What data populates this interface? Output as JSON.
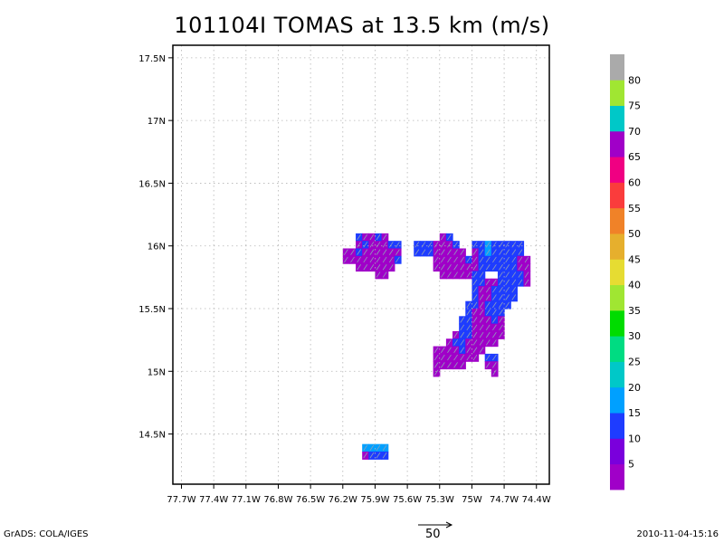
{
  "title": "101104I TOMAS at 13.5 km (m/s)",
  "footer": {
    "credit": "GrADS: COLA/IGES",
    "timestamp": "2010-11-04-15:16",
    "reference_vector_label": "50"
  },
  "chart_data": {
    "type": "heatmap",
    "title": "101104I TOMAS at 13.5 km (m/s)",
    "xlabel": "",
    "ylabel": "",
    "x_ticks": [
      -77.7,
      -77.4,
      -77.1,
      -76.8,
      -76.5,
      -76.2,
      -75.9,
      -75.6,
      -75.3,
      -75.0,
      -74.7,
      -74.4
    ],
    "x_tick_labels": [
      "77.7W",
      "77.4W",
      "77.1W",
      "76.8W",
      "76.5W",
      "76.2W",
      "75.9W",
      "75.6W",
      "75.3W",
      "75W",
      "74.7W",
      "74.4W"
    ],
    "y_ticks": [
      14.5,
      15.0,
      15.5,
      16.0,
      16.5,
      17.0,
      17.5
    ],
    "y_tick_labels": [
      "14.5N",
      "15N",
      "15.5N",
      "16N",
      "16.5N",
      "17N",
      "17.5N"
    ],
    "xlim": [
      -77.78,
      -74.28
    ],
    "ylim": [
      14.1,
      17.6
    ],
    "grid": true,
    "colorbar": {
      "labels": [
        "5",
        "10",
        "15",
        "20",
        "25",
        "30",
        "35",
        "40",
        "45",
        "50",
        "55",
        "60",
        "65",
        "70",
        "75",
        "80"
      ],
      "colors": [
        "#a000c8",
        "#7a00dc",
        "#1e3cff",
        "#00a0ff",
        "#00c8c8",
        "#00dc82",
        "#00dc00",
        "#a0e632",
        "#e6dc32",
        "#e6af2d",
        "#f08228",
        "#fa3c3c",
        "#f00082",
        "#a000c8",
        "#00c8c8",
        "#a0e632",
        "#aaaaaa"
      ]
    },
    "cells": [
      {
        "lon": -76.05,
        "lat": 16.07,
        "v": 12
      },
      {
        "lon": -75.99,
        "lat": 16.07,
        "v": 8
      },
      {
        "lon": -75.93,
        "lat": 16.07,
        "v": 8
      },
      {
        "lon": -75.87,
        "lat": 16.07,
        "v": 12
      },
      {
        "lon": -75.81,
        "lat": 16.07,
        "v": 8
      },
      {
        "lon": -76.05,
        "lat": 16.01,
        "v": 8
      },
      {
        "lon": -75.99,
        "lat": 16.01,
        "v": 12
      },
      {
        "lon": -75.93,
        "lat": 16.01,
        "v": 8
      },
      {
        "lon": -75.87,
        "lat": 16.01,
        "v": 8
      },
      {
        "lon": -75.81,
        "lat": 16.01,
        "v": 8
      },
      {
        "lon": -75.75,
        "lat": 16.01,
        "v": 12
      },
      {
        "lon": -75.69,
        "lat": 16.01,
        "v": 12
      },
      {
        "lon": -76.17,
        "lat": 15.95,
        "v": 8
      },
      {
        "lon": -76.11,
        "lat": 15.95,
        "v": 8
      },
      {
        "lon": -76.05,
        "lat": 15.95,
        "v": 12
      },
      {
        "lon": -75.99,
        "lat": 15.95,
        "v": 8
      },
      {
        "lon": -75.93,
        "lat": 15.95,
        "v": 8
      },
      {
        "lon": -75.87,
        "lat": 15.95,
        "v": 8
      },
      {
        "lon": -75.81,
        "lat": 15.95,
        "v": 8
      },
      {
        "lon": -75.75,
        "lat": 15.95,
        "v": 8
      },
      {
        "lon": -75.69,
        "lat": 15.95,
        "v": 8
      },
      {
        "lon": -76.17,
        "lat": 15.89,
        "v": 8
      },
      {
        "lon": -76.11,
        "lat": 15.89,
        "v": 8
      },
      {
        "lon": -76.05,
        "lat": 15.89,
        "v": 8
      },
      {
        "lon": -75.99,
        "lat": 15.89,
        "v": 8
      },
      {
        "lon": -75.93,
        "lat": 15.89,
        "v": 8
      },
      {
        "lon": -75.87,
        "lat": 15.89,
        "v": 8
      },
      {
        "lon": -75.81,
        "lat": 15.89,
        "v": 8
      },
      {
        "lon": -75.75,
        "lat": 15.89,
        "v": 8
      },
      {
        "lon": -75.69,
        "lat": 15.89,
        "v": 12
      },
      {
        "lon": -76.05,
        "lat": 15.83,
        "v": 8
      },
      {
        "lon": -75.99,
        "lat": 15.83,
        "v": 8
      },
      {
        "lon": -75.93,
        "lat": 15.83,
        "v": 8
      },
      {
        "lon": -75.87,
        "lat": 15.83,
        "v": 8
      },
      {
        "lon": -75.81,
        "lat": 15.83,
        "v": 8
      },
      {
        "lon": -75.75,
        "lat": 15.83,
        "v": 8
      },
      {
        "lon": -75.87,
        "lat": 15.77,
        "v": 8
      },
      {
        "lon": -75.81,
        "lat": 15.77,
        "v": 8
      },
      {
        "lon": -75.27,
        "lat": 16.07,
        "v": 8
      },
      {
        "lon": -75.21,
        "lat": 16.07,
        "v": 12
      },
      {
        "lon": -75.51,
        "lat": 16.01,
        "v": 12
      },
      {
        "lon": -75.45,
        "lat": 16.01,
        "v": 12
      },
      {
        "lon": -75.39,
        "lat": 16.01,
        "v": 12
      },
      {
        "lon": -75.33,
        "lat": 16.01,
        "v": 8
      },
      {
        "lon": -75.27,
        "lat": 16.01,
        "v": 8
      },
      {
        "lon": -75.21,
        "lat": 16.01,
        "v": 8
      },
      {
        "lon": -75.15,
        "lat": 16.01,
        "v": 12
      },
      {
        "lon": -74.97,
        "lat": 16.01,
        "v": 12
      },
      {
        "lon": -74.91,
        "lat": 16.01,
        "v": 12
      },
      {
        "lon": -74.85,
        "lat": 16.01,
        "v": 18
      },
      {
        "lon": -74.79,
        "lat": 16.01,
        "v": 12
      },
      {
        "lon": -74.73,
        "lat": 16.01,
        "v": 12
      },
      {
        "lon": -74.67,
        "lat": 16.01,
        "v": 12
      },
      {
        "lon": -74.61,
        "lat": 16.01,
        "v": 12
      },
      {
        "lon": -74.55,
        "lat": 16.01,
        "v": 12
      },
      {
        "lon": -75.51,
        "lat": 15.95,
        "v": 12
      },
      {
        "lon": -75.45,
        "lat": 15.95,
        "v": 12
      },
      {
        "lon": -75.39,
        "lat": 15.95,
        "v": 12
      },
      {
        "lon": -75.33,
        "lat": 15.95,
        "v": 8
      },
      {
        "lon": -75.27,
        "lat": 15.95,
        "v": 8
      },
      {
        "lon": -75.21,
        "lat": 15.95,
        "v": 8
      },
      {
        "lon": -75.15,
        "lat": 15.95,
        "v": 8
      },
      {
        "lon": -75.09,
        "lat": 15.95,
        "v": 8
      },
      {
        "lon": -74.97,
        "lat": 15.95,
        "v": 8
      },
      {
        "lon": -74.91,
        "lat": 15.95,
        "v": 12
      },
      {
        "lon": -74.85,
        "lat": 15.95,
        "v": 18
      },
      {
        "lon": -74.79,
        "lat": 15.95,
        "v": 12
      },
      {
        "lon": -74.73,
        "lat": 15.95,
        "v": 12
      },
      {
        "lon": -74.67,
        "lat": 15.95,
        "v": 12
      },
      {
        "lon": -74.61,
        "lat": 15.95,
        "v": 12
      },
      {
        "lon": -74.55,
        "lat": 15.95,
        "v": 12
      },
      {
        "lon": -75.33,
        "lat": 15.89,
        "v": 8
      },
      {
        "lon": -75.27,
        "lat": 15.89,
        "v": 8
      },
      {
        "lon": -75.21,
        "lat": 15.89,
        "v": 8
      },
      {
        "lon": -75.15,
        "lat": 15.89,
        "v": 8
      },
      {
        "lon": -75.09,
        "lat": 15.89,
        "v": 8
      },
      {
        "lon": -75.03,
        "lat": 15.89,
        "v": 12
      },
      {
        "lon": -74.97,
        "lat": 15.89,
        "v": 8
      },
      {
        "lon": -74.91,
        "lat": 15.89,
        "v": 12
      },
      {
        "lon": -74.85,
        "lat": 15.89,
        "v": 12
      },
      {
        "lon": -74.79,
        "lat": 15.89,
        "v": 12
      },
      {
        "lon": -74.73,
        "lat": 15.89,
        "v": 12
      },
      {
        "lon": -74.67,
        "lat": 15.89,
        "v": 12
      },
      {
        "lon": -74.61,
        "lat": 15.89,
        "v": 12
      },
      {
        "lon": -74.55,
        "lat": 15.89,
        "v": 8
      },
      {
        "lon": -74.49,
        "lat": 15.89,
        "v": 8
      },
      {
        "lon": -75.33,
        "lat": 15.83,
        "v": 8
      },
      {
        "lon": -75.27,
        "lat": 15.83,
        "v": 8
      },
      {
        "lon": -75.21,
        "lat": 15.83,
        "v": 8
      },
      {
        "lon": -75.15,
        "lat": 15.83,
        "v": 8
      },
      {
        "lon": -75.09,
        "lat": 15.83,
        "v": 8
      },
      {
        "lon": -75.03,
        "lat": 15.83,
        "v": 8
      },
      {
        "lon": -74.97,
        "lat": 15.83,
        "v": 8
      },
      {
        "lon": -74.91,
        "lat": 15.83,
        "v": 12
      },
      {
        "lon": -74.85,
        "lat": 15.83,
        "v": 12
      },
      {
        "lon": -74.79,
        "lat": 15.83,
        "v": 12
      },
      {
        "lon": -74.73,
        "lat": 15.83,
        "v": 12
      },
      {
        "lon": -74.67,
        "lat": 15.83,
        "v": 12
      },
      {
        "lon": -74.61,
        "lat": 15.83,
        "v": 12
      },
      {
        "lon": -74.55,
        "lat": 15.83,
        "v": 8
      },
      {
        "lon": -74.49,
        "lat": 15.83,
        "v": 8
      },
      {
        "lon": -75.27,
        "lat": 15.77,
        "v": 8
      },
      {
        "lon": -75.21,
        "lat": 15.77,
        "v": 8
      },
      {
        "lon": -75.15,
        "lat": 15.77,
        "v": 8
      },
      {
        "lon": -75.09,
        "lat": 15.77,
        "v": 8
      },
      {
        "lon": -75.03,
        "lat": 15.77,
        "v": 8
      },
      {
        "lon": -74.97,
        "lat": 15.77,
        "v": 12
      },
      {
        "lon": -74.91,
        "lat": 15.77,
        "v": 12
      },
      {
        "lon": -74.73,
        "lat": 15.77,
        "v": 12
      },
      {
        "lon": -74.67,
        "lat": 15.77,
        "v": 12
      },
      {
        "lon": -74.61,
        "lat": 15.77,
        "v": 12
      },
      {
        "lon": -74.55,
        "lat": 15.77,
        "v": 12
      },
      {
        "lon": -74.49,
        "lat": 15.77,
        "v": 8
      },
      {
        "lon": -74.97,
        "lat": 15.71,
        "v": 12
      },
      {
        "lon": -74.91,
        "lat": 15.71,
        "v": 12
      },
      {
        "lon": -74.85,
        "lat": 15.71,
        "v": 8
      },
      {
        "lon": -74.79,
        "lat": 15.71,
        "v": 8
      },
      {
        "lon": -74.73,
        "lat": 15.71,
        "v": 12
      },
      {
        "lon": -74.67,
        "lat": 15.71,
        "v": 12
      },
      {
        "lon": -74.61,
        "lat": 15.71,
        "v": 12
      },
      {
        "lon": -74.55,
        "lat": 15.71,
        "v": 12
      },
      {
        "lon": -74.49,
        "lat": 15.71,
        "v": 8
      },
      {
        "lon": -74.97,
        "lat": 15.65,
        "v": 12
      },
      {
        "lon": -74.91,
        "lat": 15.65,
        "v": 8
      },
      {
        "lon": -74.85,
        "lat": 15.65,
        "v": 8
      },
      {
        "lon": -74.79,
        "lat": 15.65,
        "v": 12
      },
      {
        "lon": -74.73,
        "lat": 15.65,
        "v": 12
      },
      {
        "lon": -74.67,
        "lat": 15.65,
        "v": 12
      },
      {
        "lon": -74.61,
        "lat": 15.65,
        "v": 12
      },
      {
        "lon": -74.97,
        "lat": 15.59,
        "v": 12
      },
      {
        "lon": -74.91,
        "lat": 15.59,
        "v": 8
      },
      {
        "lon": -74.85,
        "lat": 15.59,
        "v": 8
      },
      {
        "lon": -74.79,
        "lat": 15.59,
        "v": 12
      },
      {
        "lon": -74.73,
        "lat": 15.59,
        "v": 12
      },
      {
        "lon": -74.67,
        "lat": 15.59,
        "v": 12
      },
      {
        "lon": -74.61,
        "lat": 15.59,
        "v": 12
      },
      {
        "lon": -75.03,
        "lat": 15.53,
        "v": 12
      },
      {
        "lon": -74.97,
        "lat": 15.53,
        "v": 12
      },
      {
        "lon": -74.91,
        "lat": 15.53,
        "v": 8
      },
      {
        "lon": -74.85,
        "lat": 15.53,
        "v": 12
      },
      {
        "lon": -74.79,
        "lat": 15.53,
        "v": 12
      },
      {
        "lon": -74.73,
        "lat": 15.53,
        "v": 12
      },
      {
        "lon": -74.67,
        "lat": 15.53,
        "v": 12
      },
      {
        "lon": -75.03,
        "lat": 15.47,
        "v": 12
      },
      {
        "lon": -74.97,
        "lat": 15.47,
        "v": 8
      },
      {
        "lon": -74.91,
        "lat": 15.47,
        "v": 8
      },
      {
        "lon": -74.85,
        "lat": 15.47,
        "v": 12
      },
      {
        "lon": -74.79,
        "lat": 15.47,
        "v": 12
      },
      {
        "lon": -74.73,
        "lat": 15.47,
        "v": 12
      },
      {
        "lon": -75.09,
        "lat": 15.41,
        "v": 12
      },
      {
        "lon": -75.03,
        "lat": 15.41,
        "v": 12
      },
      {
        "lon": -74.97,
        "lat": 15.41,
        "v": 8
      },
      {
        "lon": -74.91,
        "lat": 15.41,
        "v": 8
      },
      {
        "lon": -74.85,
        "lat": 15.41,
        "v": 8
      },
      {
        "lon": -74.79,
        "lat": 15.41,
        "v": 12
      },
      {
        "lon": -74.73,
        "lat": 15.41,
        "v": 8
      },
      {
        "lon": -75.09,
        "lat": 15.35,
        "v": 12
      },
      {
        "lon": -75.03,
        "lat": 15.35,
        "v": 12
      },
      {
        "lon": -74.97,
        "lat": 15.35,
        "v": 8
      },
      {
        "lon": -74.91,
        "lat": 15.35,
        "v": 8
      },
      {
        "lon": -74.85,
        "lat": 15.35,
        "v": 8
      },
      {
        "lon": -74.79,
        "lat": 15.35,
        "v": 8
      },
      {
        "lon": -74.73,
        "lat": 15.35,
        "v": 8
      },
      {
        "lon": -75.15,
        "lat": 15.29,
        "v": 8
      },
      {
        "lon": -75.09,
        "lat": 15.29,
        "v": 12
      },
      {
        "lon": -75.03,
        "lat": 15.29,
        "v": 12
      },
      {
        "lon": -74.97,
        "lat": 15.29,
        "v": 8
      },
      {
        "lon": -74.91,
        "lat": 15.29,
        "v": 8
      },
      {
        "lon": -74.85,
        "lat": 15.29,
        "v": 8
      },
      {
        "lon": -74.79,
        "lat": 15.29,
        "v": 8
      },
      {
        "lon": -74.73,
        "lat": 15.29,
        "v": 8
      },
      {
        "lon": -75.21,
        "lat": 15.23,
        "v": 8
      },
      {
        "lon": -75.15,
        "lat": 15.23,
        "v": 12
      },
      {
        "lon": -75.09,
        "lat": 15.23,
        "v": 12
      },
      {
        "lon": -75.03,
        "lat": 15.23,
        "v": 8
      },
      {
        "lon": -74.97,
        "lat": 15.23,
        "v": 8
      },
      {
        "lon": -74.91,
        "lat": 15.23,
        "v": 8
      },
      {
        "lon": -74.85,
        "lat": 15.23,
        "v": 8
      },
      {
        "lon": -74.79,
        "lat": 15.23,
        "v": 8
      },
      {
        "lon": -75.33,
        "lat": 15.17,
        "v": 8
      },
      {
        "lon": -75.27,
        "lat": 15.17,
        "v": 8
      },
      {
        "lon": -75.21,
        "lat": 15.17,
        "v": 8
      },
      {
        "lon": -75.15,
        "lat": 15.17,
        "v": 8
      },
      {
        "lon": -75.09,
        "lat": 15.17,
        "v": 12
      },
      {
        "lon": -75.03,
        "lat": 15.17,
        "v": 8
      },
      {
        "lon": -74.97,
        "lat": 15.17,
        "v": 8
      },
      {
        "lon": -74.91,
        "lat": 15.17,
        "v": 8
      },
      {
        "lon": -75.33,
        "lat": 15.11,
        "v": 8
      },
      {
        "lon": -75.27,
        "lat": 15.11,
        "v": 8
      },
      {
        "lon": -75.21,
        "lat": 15.11,
        "v": 8
      },
      {
        "lon": -75.15,
        "lat": 15.11,
        "v": 8
      },
      {
        "lon": -75.09,
        "lat": 15.11,
        "v": 8
      },
      {
        "lon": -75.03,
        "lat": 15.11,
        "v": 8
      },
      {
        "lon": -74.97,
        "lat": 15.11,
        "v": 8
      },
      {
        "lon": -75.33,
        "lat": 15.05,
        "v": 8
      },
      {
        "lon": -75.27,
        "lat": 15.05,
        "v": 8
      },
      {
        "lon": -75.21,
        "lat": 15.05,
        "v": 8
      },
      {
        "lon": -75.15,
        "lat": 15.05,
        "v": 8
      },
      {
        "lon": -75.09,
        "lat": 15.05,
        "v": 8
      },
      {
        "lon": -75.33,
        "lat": 14.99,
        "v": 8
      },
      {
        "lon": -74.85,
        "lat": 15.11,
        "v": 12
      },
      {
        "lon": -74.79,
        "lat": 15.11,
        "v": 12
      },
      {
        "lon": -74.85,
        "lat": 15.05,
        "v": 8
      },
      {
        "lon": -74.79,
        "lat": 15.05,
        "v": 8
      },
      {
        "lon": -74.79,
        "lat": 14.99,
        "v": 8
      },
      {
        "lon": -75.99,
        "lat": 14.39,
        "v": 18
      },
      {
        "lon": -75.93,
        "lat": 14.39,
        "v": 18
      },
      {
        "lon": -75.87,
        "lat": 14.39,
        "v": 18
      },
      {
        "lon": -75.81,
        "lat": 14.39,
        "v": 18
      },
      {
        "lon": -75.99,
        "lat": 14.33,
        "v": 8
      },
      {
        "lon": -75.93,
        "lat": 14.33,
        "v": 12
      },
      {
        "lon": -75.87,
        "lat": 14.33,
        "v": 12
      },
      {
        "lon": -75.81,
        "lat": 14.33,
        "v": 12
      }
    ]
  }
}
